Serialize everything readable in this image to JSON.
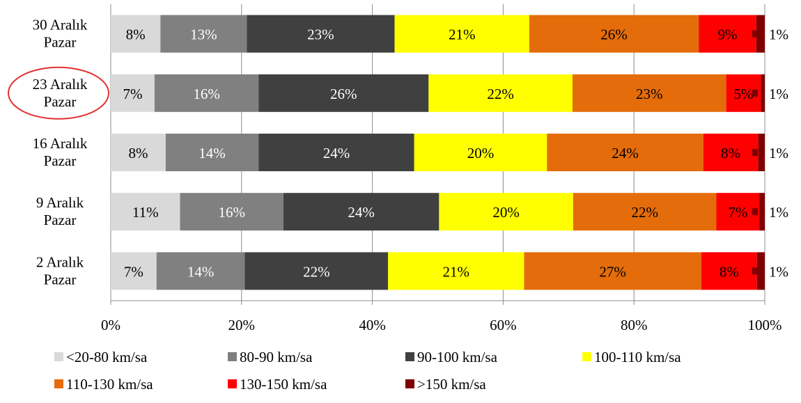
{
  "chart_data": {
    "type": "bar",
    "orientation": "horizontal",
    "stacked": "percent",
    "categories": [
      [
        "30 Aralık",
        "Pazar"
      ],
      [
        "23 Aralık",
        "Pazar"
      ],
      [
        "16 Aralık",
        "Pazar"
      ],
      [
        "9 Aralık",
        "Pazar"
      ],
      [
        "2 Aralık",
        "Pazar"
      ]
    ],
    "highlighted_category": "23 Aralık Pazar",
    "highlight_color": "#e03030",
    "series": [
      {
        "name": "<20-80 km/sa",
        "color": "#d9d9d9",
        "label_color": "#000000",
        "values": [
          7.6,
          6.7,
          8.4,
          10.6,
          7.0
        ],
        "labels": [
          "8%",
          "7%",
          "8%",
          "11%",
          "7%"
        ]
      },
      {
        "name": "80-90 km/sa",
        "color": "#808080",
        "label_color": "#ffffff",
        "values": [
          13.2,
          15.9,
          14.2,
          15.8,
          13.5
        ],
        "labels": [
          "13%",
          "16%",
          "14%",
          "16%",
          "14%"
        ]
      },
      {
        "name": "90-100 km/sa",
        "color": "#404040",
        "label_color": "#ffffff",
        "values": [
          22.6,
          26.0,
          23.8,
          23.8,
          21.9
        ],
        "labels": [
          "23%",
          "26%",
          "24%",
          "24%",
          "22%"
        ]
      },
      {
        "name": "100-110 km/sa",
        "color": "#ffff00",
        "label_color": "#000000",
        "values": [
          20.6,
          22.0,
          20.3,
          20.5,
          20.8
        ],
        "labels": [
          "21%",
          "22%",
          "20%",
          "20%",
          "21%"
        ]
      },
      {
        "name": "110-130 km/sa",
        "color": "#e46c0a",
        "label_color": "#000000",
        "values": [
          25.9,
          23.5,
          23.9,
          21.9,
          27.1
        ],
        "labels": [
          "26%",
          "23%",
          "24%",
          "22%",
          "27%"
        ]
      },
      {
        "name": "130-150 km/sa",
        "color": "#ff0000",
        "label_color": "#000000",
        "values": [
          8.8,
          5.3,
          8.4,
          6.6,
          8.5
        ],
        "labels": [
          "9%",
          "5%",
          "8%",
          "7%",
          "8%"
        ]
      },
      {
        "name": ">150 km/sa",
        "color": "#7f0000",
        "label_color": "#000000",
        "values": [
          1.3,
          0.6,
          1.0,
          0.8,
          1.2
        ],
        "labels": [
          "1%",
          "1%",
          "1%",
          "1%",
          "1%"
        ]
      }
    ],
    "xlim": [
      0,
      100
    ],
    "xticks": [
      "0%",
      "20%",
      "40%",
      "60%",
      "80%",
      "100%"
    ],
    "grid": "vertical",
    "legend": "bottom",
    "title": "",
    "xlabel": "",
    "ylabel": ""
  }
}
